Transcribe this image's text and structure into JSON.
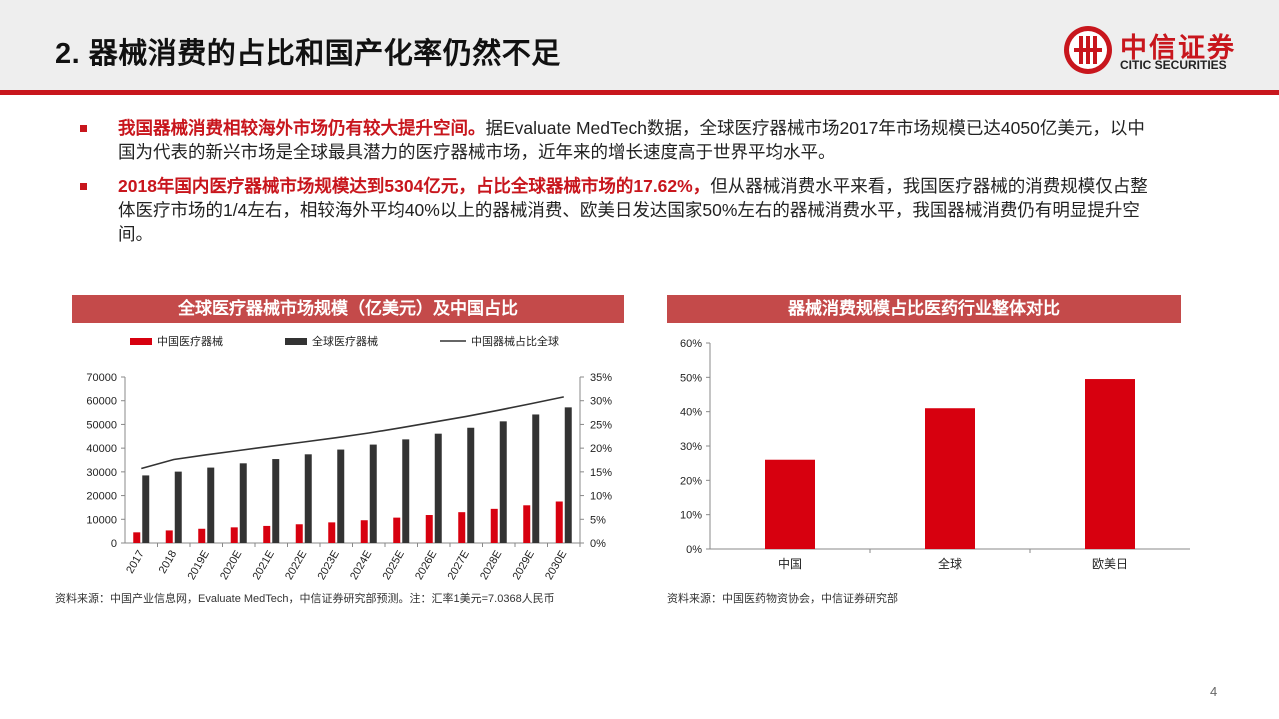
{
  "title": "2. 器械消费的占比和国产化率仍然不足",
  "logo": {
    "cn": "中信证券",
    "en": "CITIC SECURITIES"
  },
  "bullets": [
    {
      "highlight": "我国器械消费相较海外市场仍有较大提升空间。",
      "text": "据Evaluate MedTech数据，全球医疗器械市场2017年市场规模已达4050亿美元，以中国为代表的新兴市场是全球最具潜力的医疗器械市场，近年来的增长速度高于世界平均水平。"
    },
    {
      "highlight": "2018年国内医疗器械市场规模达到5304亿元，占比全球器械市场的17.62%，",
      "text": "但从器械消费水平来看，我国医疗器械的消费规模仅占整体医疗市场的1/4左右，相较海外平均40%以上的器械消费、欧美日发达国家50%左右的器械消费水平，我国器械消费仍有明显提升空间。"
    }
  ],
  "chart1_title": "全球医疗器械市场规模（亿美元）及中国占比",
  "chart2_title": "器械消费规模占比医药行业整体对比",
  "source1": "资料来源：中国产业信息网，Evaluate MedTech，中信证券研究部预测。注：汇率1美元=7.0368人民币",
  "source2": "资料来源：中国医药物资协会，中信证券研究部",
  "page_number": "4",
  "colors": {
    "red": "#d7000f",
    "dark": "#333333",
    "accent": "#c8161d"
  },
  "chart_data": [
    {
      "type": "bar",
      "categories": [
        "2017",
        "2018",
        "2019E",
        "2020E",
        "2021E",
        "2022E",
        "2023E",
        "2024E",
        "2025E",
        "2026E",
        "2027E",
        "2028E",
        "2029E",
        "2030E"
      ],
      "series": [
        {
          "name": "中国医疗器械",
          "type": "bar",
          "axis": "left",
          "color": "#d7000f",
          "values": [
            4500,
            5304,
            6000,
            6600,
            7200,
            7900,
            8700,
            9600,
            10700,
            11800,
            13000,
            14400,
            15900,
            17500
          ]
        },
        {
          "name": "全球医疗器械",
          "type": "bar",
          "axis": "left",
          "color": "#333333",
          "values": [
            28500,
            30100,
            31800,
            33600,
            35400,
            37400,
            39400,
            41500,
            43700,
            46100,
            48600,
            51300,
            54200,
            57200
          ]
        },
        {
          "name": "中国器械占比全球",
          "type": "line",
          "axis": "right",
          "color": "#333333",
          "values": [
            15.7,
            17.6,
            18.6,
            19.5,
            20.4,
            21.3,
            22.2,
            23.2,
            24.3,
            25.5,
            26.7,
            28.0,
            29.4,
            30.8
          ]
        }
      ],
      "yticks_left": [
        "0",
        "10000",
        "20000",
        "30000",
        "40000",
        "50000",
        "60000",
        "70000"
      ],
      "ylim_left": [
        0,
        70000
      ],
      "yticks_right": [
        "0%",
        "5%",
        "10%",
        "15%",
        "20%",
        "25%",
        "30%",
        "35%"
      ],
      "ylim_right": [
        0,
        35
      ],
      "legend": "top"
    },
    {
      "type": "bar",
      "categories": [
        "中国",
        "全球",
        "欧美日"
      ],
      "values": [
        26,
        41,
        49.5
      ],
      "color": "#d7000f",
      "yticks": [
        "0%",
        "10%",
        "20%",
        "30%",
        "40%",
        "50%",
        "60%"
      ],
      "ylim": [
        0,
        60
      ]
    }
  ]
}
